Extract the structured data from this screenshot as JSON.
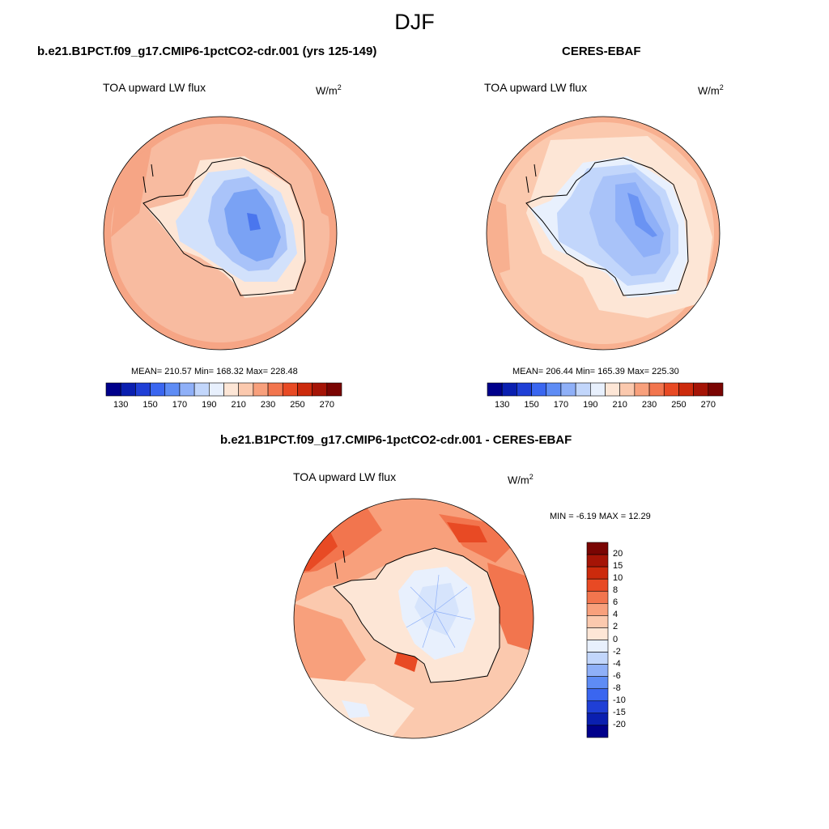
{
  "season": "DJF",
  "panels": {
    "model": {
      "title": "b.e21.B1PCT.f09_g17.CMIP6-1pctCO2-cdr.001 (yrs 125-149)",
      "variable": "TOA upward LW flux",
      "units_base": "W/m",
      "units_exp": "2",
      "stats": "MEAN= 210.57  Min= 168.32  Max= 228.48"
    },
    "obs": {
      "title": "CERES-EBAF",
      "variable": "TOA upward LW flux",
      "units_base": "W/m",
      "units_exp": "2",
      "stats": "MEAN= 206.44  Min= 165.39  Max= 225.30"
    },
    "diff": {
      "title": "b.e21.B1PCT.f09_g17.CMIP6-1pctCO2-cdr.001 - CERES-EBAF",
      "variable": "TOA upward LW flux",
      "units_base": "W/m",
      "units_exp": "2",
      "stats": "MIN =  -6.19 MAX =  12.29"
    }
  },
  "colorbar_abs": {
    "labels": [
      "130",
      "150",
      "170",
      "190",
      "210",
      "230",
      "250",
      "270"
    ],
    "colors": [
      "#00008b",
      "#0a1fb0",
      "#1f3fd6",
      "#3a66f0",
      "#5e8cf5",
      "#8fb0f8",
      "#c2d6fb",
      "#e8f0fd",
      "#fde6d6",
      "#fbc9ae",
      "#f8a07c",
      "#f2754e",
      "#e84a24",
      "#cc2a0c",
      "#a51406",
      "#7a0503"
    ]
  },
  "colorbar_diff": {
    "labels": [
      "20",
      "15",
      "10",
      "8",
      "6",
      "4",
      "2",
      "0",
      "-2",
      "-4",
      "-6",
      "-8",
      "-10",
      "-15",
      "-20"
    ],
    "colors": [
      "#7a0503",
      "#a51406",
      "#cc2a0c",
      "#e84a24",
      "#f2754e",
      "#f8a07c",
      "#fbc9ae",
      "#fde6d6",
      "#e8f0fd",
      "#c2d6fb",
      "#8fb0f8",
      "#5e8cf5",
      "#3a66f0",
      "#1f3fd6",
      "#0a1fb0",
      "#00008b"
    ]
  }
}
